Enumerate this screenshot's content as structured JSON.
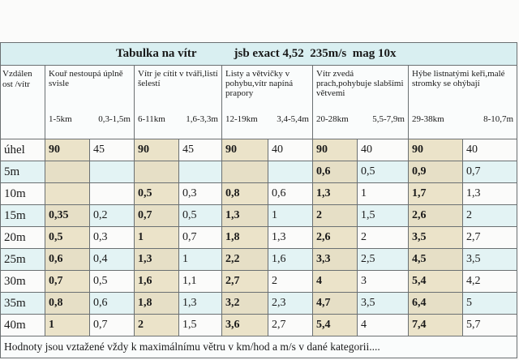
{
  "header": {
    "title": "Tabulka na vítr",
    "subtitle": "jsb exact 4,52  235m/s  mag 10x"
  },
  "table": {
    "corner": "Vzdálen ost /vítr",
    "groups": [
      {
        "desc": "Kouř nestoupá úplně svisle",
        "kmh": "1-5km",
        "ms": "0,3-1,5m"
      },
      {
        "desc": "Vítr je cítit v tváři,listí šelestí",
        "kmh": "6-11km",
        "ms": "1,6-3,3m"
      },
      {
        "desc": "Listy a větvičky v pohybu,vítr napíná prapory",
        "kmh": "12-19km",
        "ms": "3,4-5,4m"
      },
      {
        "desc": "Vítr zvedá prach,pohybuje slabšími větvemi",
        "kmh": "20-28km",
        "ms": "5,5-7,9m"
      },
      {
        "desc": "Hýbe listnatými keři,malé stromky se ohýbají",
        "kmh": "29-38km",
        "ms": "8-10,7m"
      }
    ],
    "rows": [
      {
        "label": "úhel",
        "cells": [
          "90",
          "45",
          "90",
          "45",
          "90",
          "40",
          "90",
          "40",
          "90",
          "40"
        ]
      },
      {
        "label": "5m",
        "cells": [
          null,
          null,
          null,
          null,
          null,
          null,
          "0,6",
          "0,5",
          "0,9",
          "0,7"
        ]
      },
      {
        "label": "10m",
        "cells": [
          null,
          null,
          "0,5",
          "0,3",
          "0,8",
          "0,6",
          "1,3",
          "1",
          "1,7",
          "1,3"
        ]
      },
      {
        "label": "15m",
        "cells": [
          "0,35",
          "0,2",
          "0,7",
          "0,5",
          "1,3",
          "1",
          "2",
          "1,5",
          "2,6",
          "2"
        ]
      },
      {
        "label": "20m",
        "cells": [
          "0,5",
          "0,3",
          "1",
          "0,7",
          "1,8",
          "1,3",
          "2,6",
          "2",
          "3,5",
          "2,7"
        ]
      },
      {
        "label": "25m",
        "cells": [
          "0,6",
          "0,4",
          "1,3",
          "1",
          "2,2",
          "1,6",
          "3,3",
          "2,5",
          "4,5",
          "3,5"
        ]
      },
      {
        "label": "30m",
        "cells": [
          "0,7",
          "0,5",
          "1,6",
          "1,1",
          "2,7",
          "2",
          "4",
          "3",
          "5,4",
          "4,2"
        ]
      },
      {
        "label": "35m",
        "cells": [
          "0,8",
          "0,6",
          "1,8",
          "1,3",
          "3,2",
          "2,3",
          "4,7",
          "3,5",
          "6,4",
          "5"
        ]
      },
      {
        "label": "40m",
        "cells": [
          "1",
          "0,7",
          "2",
          "1,5",
          "3,6",
          "2,7",
          "5,4",
          "4",
          "7,4",
          "5,7"
        ]
      }
    ]
  },
  "footer": "Hodnoty jsou vztažené vždy k maximálnímu větru v km/hod a m/s v dané kategorii...."
}
